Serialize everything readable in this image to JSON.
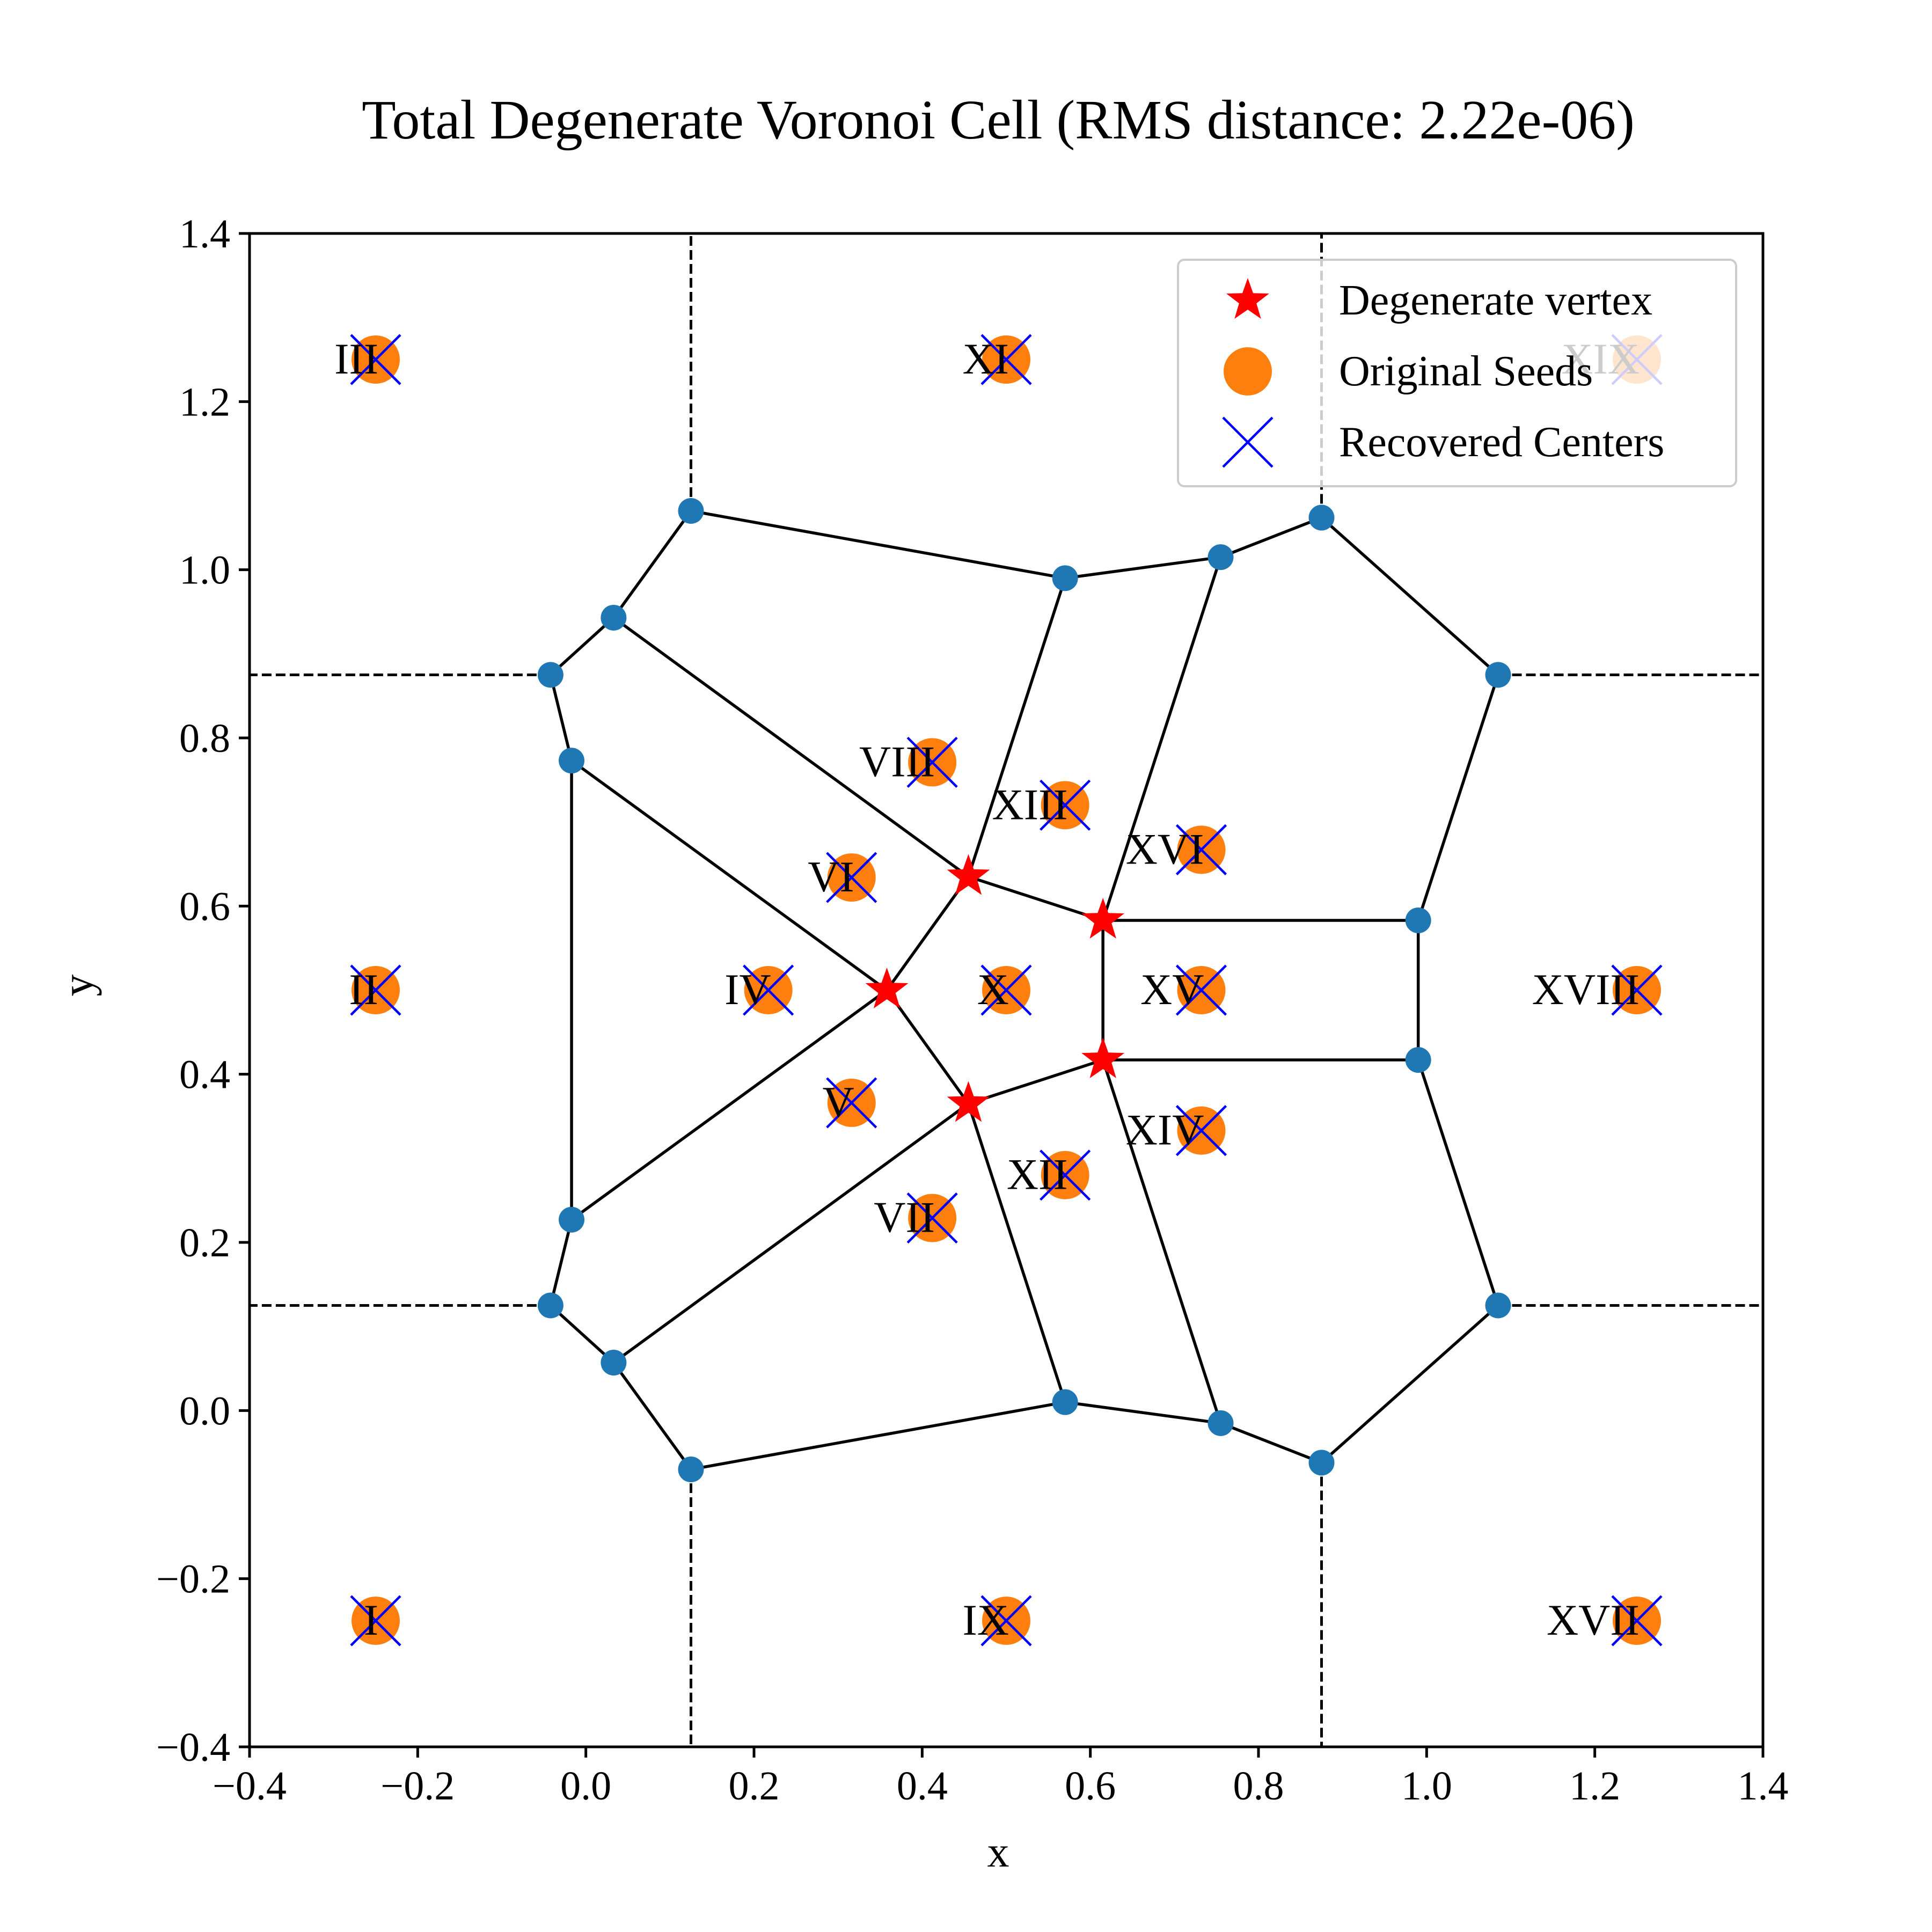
{
  "chart_data": {
    "type": "scatter",
    "title": "Total Degenerate Voronoi Cell  (RMS distance: 2.22e-06)",
    "xlabel": "x",
    "ylabel": "y",
    "xlim": [
      -0.4,
      1.4
    ],
    "ylim": [
      -0.4,
      1.4
    ],
    "xticks": [
      -0.4,
      -0.2,
      0.0,
      0.2,
      0.4,
      0.6,
      0.8,
      1.0,
      1.2,
      1.4
    ],
    "yticks": [
      -0.4,
      -0.2,
      0.0,
      0.2,
      0.4,
      0.6,
      0.8,
      1.0,
      1.2,
      1.4
    ],
    "xtick_labels": [
      "−0.4",
      "−0.2",
      "0.0",
      "0.2",
      "0.4",
      "0.6",
      "0.8",
      "1.0",
      "1.2",
      "1.4"
    ],
    "ytick_labels": [
      "−0.4",
      "−0.2",
      "0.0",
      "0.2",
      "0.4",
      "0.6",
      "0.8",
      "1.0",
      "1.2",
      "1.4"
    ],
    "grid": false,
    "legend_position": "top-right",
    "legend": [
      {
        "label": "Degenerate vertex",
        "marker": "star",
        "color": "#ff0000"
      },
      {
        "label": "Original Seeds",
        "marker": "circle",
        "color": "#ff7f0e"
      },
      {
        "label": "Recovered Centers",
        "marker": "x",
        "color": "#0000ff"
      }
    ],
    "colors": {
      "vertex": "#1f77b4",
      "seed": "#ff7f0e",
      "recovered": "#0000ff",
      "degenerate": "#ff0000",
      "edge": "#000000"
    },
    "seeds": [
      {
        "label": "I",
        "x": -0.25,
        "y": -0.25
      },
      {
        "label": "II",
        "x": -0.25,
        "y": 0.5
      },
      {
        "label": "III",
        "x": -0.25,
        "y": 1.25
      },
      {
        "label": "IV",
        "x": 0.217,
        "y": 0.5
      },
      {
        "label": "V",
        "x": 0.316,
        "y": 0.366
      },
      {
        "label": "VI",
        "x": 0.316,
        "y": 0.634
      },
      {
        "label": "VII",
        "x": 0.412,
        "y": 0.229
      },
      {
        "label": "VIII",
        "x": 0.412,
        "y": 0.771
      },
      {
        "label": "IX",
        "x": 0.5,
        "y": -0.25
      },
      {
        "label": "X",
        "x": 0.5,
        "y": 0.5
      },
      {
        "label": "XI",
        "x": 0.5,
        "y": 1.25
      },
      {
        "label": "XII",
        "x": 0.57,
        "y": 0.28
      },
      {
        "label": "XIII",
        "x": 0.57,
        "y": 0.72
      },
      {
        "label": "XIV",
        "x": 0.732,
        "y": 0.333
      },
      {
        "label": "XV",
        "x": 0.732,
        "y": 0.5
      },
      {
        "label": "XVI",
        "x": 0.732,
        "y": 0.667
      },
      {
        "label": "XVII",
        "x": 1.25,
        "y": -0.25
      },
      {
        "label": "XVIII",
        "x": 1.25,
        "y": 0.5
      },
      {
        "label": "XIX",
        "x": 1.25,
        "y": 1.25
      }
    ],
    "degenerate_vertices": [
      {
        "x": 0.358,
        "y": 0.5
      },
      {
        "x": 0.455,
        "y": 0.635
      },
      {
        "x": 0.455,
        "y": 0.365
      },
      {
        "x": 0.615,
        "y": 0.583
      },
      {
        "x": 0.615,
        "y": 0.417
      }
    ],
    "vertices": [
      {
        "x": 0.125,
        "y": 1.07
      },
      {
        "x": 0.033,
        "y": 0.943
      },
      {
        "x": -0.042,
        "y": 0.875
      },
      {
        "x": -0.017,
        "y": 0.773
      },
      {
        "x": -0.017,
        "y": 0.227
      },
      {
        "x": -0.042,
        "y": 0.125
      },
      {
        "x": 0.033,
        "y": 0.057
      },
      {
        "x": 0.125,
        "y": -0.07
      },
      {
        "x": 0.57,
        "y": 0.99
      },
      {
        "x": 0.755,
        "y": 1.015
      },
      {
        "x": 0.875,
        "y": 1.062
      },
      {
        "x": 1.085,
        "y": 0.875
      },
      {
        "x": 0.99,
        "y": 0.583
      },
      {
        "x": 0.99,
        "y": 0.417
      },
      {
        "x": 1.085,
        "y": 0.125
      },
      {
        "x": 0.875,
        "y": -0.062
      },
      {
        "x": 0.755,
        "y": -0.015
      },
      {
        "x": 0.57,
        "y": 0.01
      }
    ],
    "edges": [
      [
        [
          0.125,
          1.07
        ],
        [
          0.57,
          0.99
        ]
      ],
      [
        [
          0.57,
          0.99
        ],
        [
          0.755,
          1.015
        ]
      ],
      [
        [
          0.755,
          1.015
        ],
        [
          0.875,
          1.062
        ]
      ],
      [
        [
          0.875,
          1.062
        ],
        [
          1.085,
          0.875
        ]
      ],
      [
        [
          1.085,
          0.875
        ],
        [
          0.99,
          0.583
        ]
      ],
      [
        [
          0.99,
          0.583
        ],
        [
          0.99,
          0.417
        ]
      ],
      [
        [
          0.99,
          0.417
        ],
        [
          1.085,
          0.125
        ]
      ],
      [
        [
          1.085,
          0.125
        ],
        [
          0.875,
          -0.062
        ]
      ],
      [
        [
          0.875,
          -0.062
        ],
        [
          0.755,
          -0.015
        ]
      ],
      [
        [
          0.755,
          -0.015
        ],
        [
          0.57,
          0.01
        ]
      ],
      [
        [
          0.57,
          0.01
        ],
        [
          0.125,
          -0.07
        ]
      ],
      [
        [
          0.125,
          -0.07
        ],
        [
          0.033,
          0.057
        ]
      ],
      [
        [
          0.033,
          0.057
        ],
        [
          -0.042,
          0.125
        ]
      ],
      [
        [
          -0.042,
          0.125
        ],
        [
          -0.017,
          0.227
        ]
      ],
      [
        [
          -0.017,
          0.227
        ],
        [
          -0.017,
          0.773
        ]
      ],
      [
        [
          -0.017,
          0.773
        ],
        [
          -0.042,
          0.875
        ]
      ],
      [
        [
          -0.042,
          0.875
        ],
        [
          0.033,
          0.943
        ]
      ],
      [
        [
          0.033,
          0.943
        ],
        [
          0.125,
          1.07
        ]
      ],
      [
        [
          0.033,
          0.943
        ],
        [
          0.455,
          0.635
        ]
      ],
      [
        [
          -0.017,
          0.773
        ],
        [
          0.358,
          0.5
        ]
      ],
      [
        [
          -0.017,
          0.227
        ],
        [
          0.358,
          0.5
        ]
      ],
      [
        [
          0.033,
          0.057
        ],
        [
          0.455,
          0.365
        ]
      ],
      [
        [
          0.358,
          0.5
        ],
        [
          0.455,
          0.635
        ]
      ],
      [
        [
          0.358,
          0.5
        ],
        [
          0.455,
          0.365
        ]
      ],
      [
        [
          0.455,
          0.635
        ],
        [
          0.615,
          0.583
        ]
      ],
      [
        [
          0.455,
          0.365
        ],
        [
          0.615,
          0.417
        ]
      ],
      [
        [
          0.615,
          0.583
        ],
        [
          0.615,
          0.417
        ]
      ],
      [
        [
          0.615,
          0.583
        ],
        [
          0.99,
          0.583
        ]
      ],
      [
        [
          0.615,
          0.417
        ],
        [
          0.99,
          0.417
        ]
      ],
      [
        [
          0.455,
          0.635
        ],
        [
          0.57,
          0.99
        ]
      ],
      [
        [
          0.455,
          0.365
        ],
        [
          0.57,
          0.01
        ]
      ],
      [
        [
          0.615,
          0.583
        ],
        [
          0.755,
          1.015
        ]
      ],
      [
        [
          0.615,
          0.417
        ],
        [
          0.755,
          -0.015
        ]
      ]
    ],
    "dashed_lines": [
      [
        [
          0.125,
          1.07
        ],
        [
          0.125,
          1.4
        ]
      ],
      [
        [
          0.875,
          1.062
        ],
        [
          0.875,
          1.4
        ]
      ],
      [
        [
          0.125,
          -0.07
        ],
        [
          0.125,
          -0.4
        ]
      ],
      [
        [
          0.875,
          -0.062
        ],
        [
          0.875,
          -0.4
        ]
      ],
      [
        [
          -0.042,
          0.875
        ],
        [
          -0.4,
          0.875
        ]
      ],
      [
        [
          -0.042,
          0.125
        ],
        [
          -0.4,
          0.125
        ]
      ],
      [
        [
          1.085,
          0.875
        ],
        [
          1.4,
          0.875
        ]
      ],
      [
        [
          1.085,
          0.125
        ],
        [
          1.4,
          0.125
        ]
      ]
    ]
  }
}
